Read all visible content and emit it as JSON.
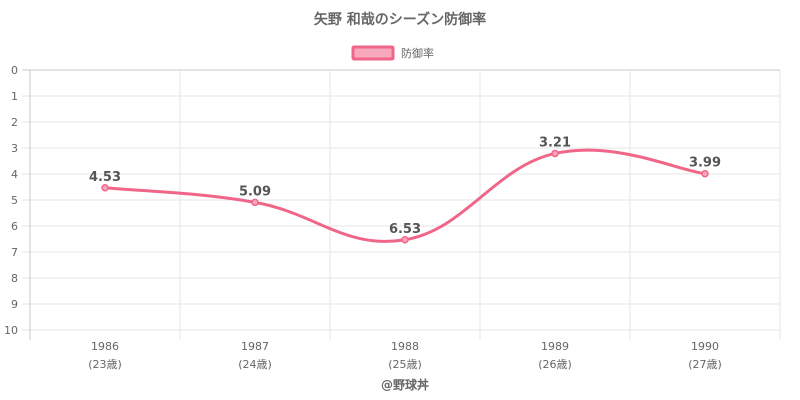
{
  "chart_data": {
    "type": "line",
    "title": "矢野 和哉のシーズン防御率",
    "categories": [
      "1986",
      "1987",
      "1988",
      "1989",
      "1990"
    ],
    "category_sublabels": [
      "(23歳)",
      "(24歳)",
      "(25歳)",
      "(26歳)",
      "(27歳)"
    ],
    "series": [
      {
        "name": "防御率",
        "values": [
          4.53,
          5.09,
          6.53,
          3.21,
          3.99
        ],
        "data_labels": [
          "4.53",
          "5.09",
          "6.53",
          "3.21",
          "3.99"
        ]
      }
    ],
    "y_ticks": [
      "0",
      "1",
      "2",
      "3",
      "4",
      "5",
      "6",
      "7",
      "8",
      "9",
      "10"
    ],
    "ylim": [
      0,
      10
    ],
    "y_reversed": true,
    "grid": true,
    "legend_position": "top",
    "colors": {
      "line": "#f06688",
      "legend_fill": "#f7a8bd"
    },
    "credit": "@野球丼"
  }
}
